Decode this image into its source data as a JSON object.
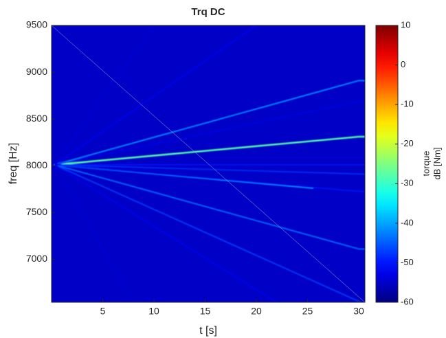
{
  "chart_data": {
    "type": "spectrogram",
    "title": "Trq DC",
    "xlabel": "t [s]",
    "ylabel": "freq [Hz]",
    "xlim": [
      0,
      30.6
    ],
    "xticks": [
      5,
      10,
      15,
      20,
      25,
      30
    ],
    "ylim": [
      6540,
      9500
    ],
    "yticks": [
      7000,
      7500,
      8000,
      8500,
      9000,
      9500
    ],
    "clim": [
      -60,
      10
    ],
    "cticks": [
      -60,
      -50,
      -40,
      -30,
      -20,
      -10,
      0,
      10
    ],
    "colorbar_label": [
      "torque",
      "dB [Nm]"
    ],
    "colormap": "jet",
    "series": [
      {
        "x": [
          0.3,
          30,
          30.6
        ],
        "values": [
          8010,
          8310,
          8310
        ],
        "level": -28
      },
      {
        "x": [
          0.3,
          30,
          30.6
        ],
        "values": [
          8010,
          8910,
          8910
        ],
        "level": -42
      },
      {
        "x": [
          0.3,
          25.5
        ],
        "values": [
          8010,
          7760
        ],
        "level": -40
      },
      {
        "x": [
          0.3,
          30,
          30.6
        ],
        "values": [
          8010,
          7110,
          7110
        ],
        "level": -44
      },
      {
        "x": [
          0.3,
          30.2
        ],
        "values": [
          8010,
          6540
        ],
        "level": -47
      },
      {
        "x": [
          0.3,
          30.6
        ],
        "values": [
          8010,
          8010
        ],
        "level": -50
      },
      {
        "x": [
          0.3,
          30.6
        ],
        "values": [
          8010,
          7910
        ],
        "level": -48
      },
      {
        "x": [
          0.3,
          30.6
        ],
        "values": [
          8010,
          7720
        ],
        "level": -50
      },
      {
        "x": [
          0.3,
          30.6
        ],
        "values": [
          8010,
          8700
        ],
        "level": -53
      },
      {
        "x": [
          0.3,
          20
        ],
        "values": [
          8010,
          9500
        ],
        "level": -52
      },
      {
        "x": [
          0.3,
          22
        ],
        "values": [
          8010,
          6540
        ],
        "level": -52
      },
      {
        "x": [
          0.3,
          10
        ],
        "values": [
          8010,
          9500
        ],
        "level": -54
      },
      {
        "x": [
          0.3,
          8
        ],
        "values": [
          8010,
          6540
        ],
        "level": -54
      }
    ]
  }
}
